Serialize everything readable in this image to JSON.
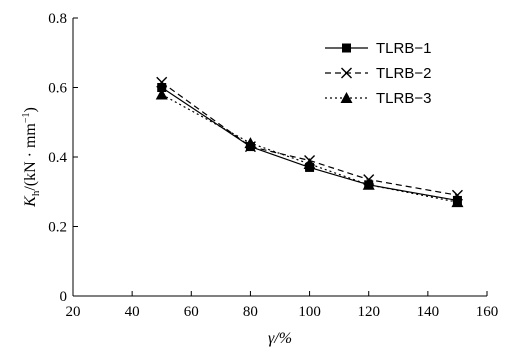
{
  "chart_data": {
    "type": "line",
    "x": [
      50,
      80,
      100,
      120,
      150
    ],
    "xlim": [
      20,
      160
    ],
    "ylim": [
      0,
      0.8
    ],
    "xticks": [
      "20",
      "40",
      "60",
      "80",
      "100",
      "120",
      "140",
      "160"
    ],
    "yticks": [
      "0",
      "0.2",
      "0.4",
      "0.6",
      "0.8"
    ],
    "xlabel": "γ/%",
    "ylabel": {
      "main": "K",
      "sub": "h",
      "unit": "/(kN · mm",
      "exp": "−1",
      "close": ")"
    },
    "grid": false,
    "legend_position": "top-right",
    "series": [
      {
        "name": "TLRB−1",
        "values": [
          0.6,
          0.43,
          0.37,
          0.32,
          0.275
        ],
        "marker": "square",
        "line": "solid",
        "color": "#000000"
      },
      {
        "name": "TLRB−2",
        "values": [
          0.615,
          0.43,
          0.39,
          0.335,
          0.29
        ],
        "marker": "x",
        "line": "dashed",
        "color": "#000000"
      },
      {
        "name": "TLRB−3",
        "values": [
          0.58,
          0.44,
          0.38,
          0.32,
          0.27
        ],
        "marker": "triangle",
        "line": "dashdot",
        "color": "#000000"
      }
    ]
  }
}
